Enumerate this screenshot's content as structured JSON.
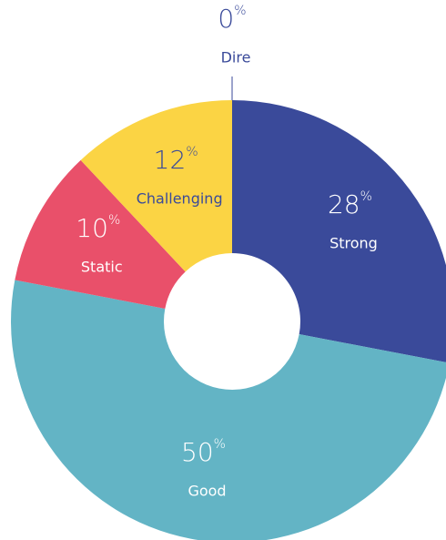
{
  "chart_data": {
    "type": "donut",
    "unit": "%",
    "categories": [
      "Strong",
      "Good",
      "Static",
      "Challenging",
      "Dire"
    ],
    "values": [
      28,
      50,
      10,
      12,
      0
    ],
    "colors": [
      "#3a4a9a",
      "#63b4c5",
      "#e9506a",
      "#fbd444",
      "#fbd444"
    ]
  }
}
